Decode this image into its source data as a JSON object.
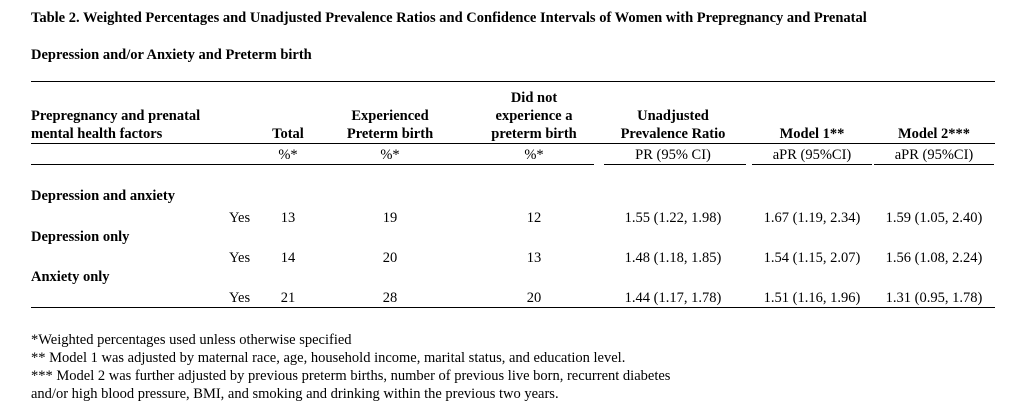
{
  "title": {
    "line1": "Table 2. Weighted Percentages and Unadjusted Prevalence Ratios and Confidence Intervals of Women with Prepregnancy and Prenatal",
    "line2": "Depression and/or Anxiety and Preterm birth"
  },
  "header": {
    "factor_line1": "Prepregnancy and prenatal",
    "factor_line2": "mental health factors",
    "total": "Total",
    "exp_line1": "Experienced",
    "exp_line2": "Preterm birth",
    "notexp_line1": "Did not",
    "notexp_line2": "experience a",
    "notexp_line3": "preterm birth",
    "upr_line1": "Unadjusted",
    "upr_line2": "Prevalence Ratio",
    "model1": "Model 1**",
    "model2": "Model 2***"
  },
  "subheader": {
    "total": "%*",
    "exp": "%*",
    "notexp": "%*",
    "upr": "PR (95% CI)",
    "model1": "aPR (95%CI)",
    "model2": "aPR (95%CI)"
  },
  "rows": [
    {
      "group": "Depression and anxiety",
      "level": "Yes",
      "total": "13",
      "exp": "19",
      "notexp": "12",
      "upr": "1.55 (1.22, 1.98)",
      "model1": "1.67 (1.19, 2.34)",
      "model2": "1.59 (1.05, 2.40)"
    },
    {
      "group": "Depression only",
      "level": "Yes",
      "total": "14",
      "exp": "20",
      "notexp": "13",
      "upr": "1.48 (1.18, 1.85)",
      "model1": "1.54 (1.15, 2.07)",
      "model2": "1.56 (1.08, 2.24)"
    },
    {
      "group": "Anxiety only",
      "level": "Yes",
      "total": "21",
      "exp": "28",
      "notexp": "20",
      "upr": "1.44 (1.17, 1.78)",
      "model1": "1.51 (1.16, 1.96)",
      "model2": "1.31 (0.95, 1.78)"
    }
  ],
  "footnotes": [
    "*Weighted percentages used unless otherwise specified",
    "** Model 1 was adjusted by maternal race, age, household income, marital status, and education level.",
    "*** Model 2 was further adjusted by previous preterm births, number of previous live born, recurrent diabetes",
    "and/or high blood pressure, BMI, and smoking and drinking within the previous two years."
  ]
}
